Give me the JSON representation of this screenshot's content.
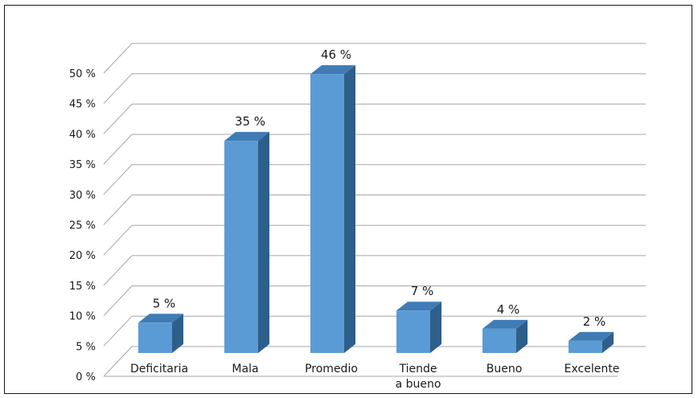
{
  "chart_data": {
    "type": "bar",
    "style": "3d-column",
    "categories": [
      "Deficitaria",
      "Mala",
      "Promedio",
      "Tiende a bueno",
      "Bueno",
      "Excelente"
    ],
    "category_label_lines": [
      [
        "Deficitaria"
      ],
      [
        "Mala"
      ],
      [
        "Promedio"
      ],
      [
        "Tiende",
        "a bueno"
      ],
      [
        "Bueno"
      ],
      [
        "Excelente"
      ]
    ],
    "values": [
      5,
      35,
      46,
      7,
      4,
      2
    ],
    "value_labels": [
      "5 %",
      "35 %",
      "46 %",
      "7 %",
      "4 %",
      "2 %"
    ],
    "ylim": [
      0,
      50
    ],
    "y_ticks": [
      0,
      5,
      10,
      15,
      20,
      25,
      30,
      35,
      40,
      45,
      50
    ],
    "y_tick_labels": [
      "0 %",
      "5 %",
      "10 %",
      "15 %",
      "20 %",
      "25 %",
      "30 %",
      "35 %",
      "40 %",
      "45 %",
      "50 %"
    ],
    "grid": true,
    "legend": "none",
    "colors": {
      "bar_front": "#5b9bd5",
      "bar_side": "#2e5f8a",
      "bar_top": "#3f7cb5",
      "gridline": "#a6a6a6",
      "frame": "#1a1a1a"
    }
  }
}
